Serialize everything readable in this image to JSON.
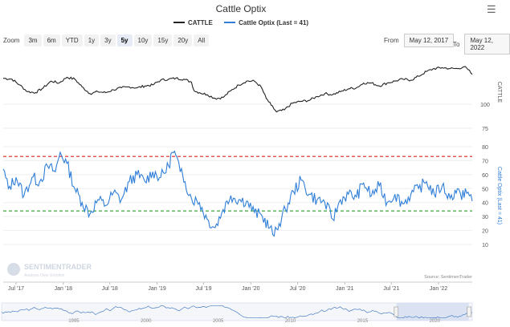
{
  "header": {
    "title": "Cattle Optix",
    "menu_icon": "hamburger-menu-icon"
  },
  "legend": [
    {
      "label": "CATTLE",
      "color": "#222222"
    },
    {
      "label": "Cattle Optix (Last = 41)",
      "color": "#2f7ed8"
    }
  ],
  "zoom": {
    "label": "Zoom",
    "buttons": [
      "3m",
      "6m",
      "YTD",
      "1y",
      "3y",
      "5y",
      "10y",
      "15y",
      "20y",
      "All"
    ],
    "selected": "5y"
  },
  "range": {
    "from_label": "From",
    "from_value": "May 12, 2017",
    "to_label": "To",
    "to_value": "May 12, 2022"
  },
  "watermark": {
    "name": "SENTIMENTRADER",
    "tagline": "Analysis Over Emotion"
  },
  "source": "Source: SentimenTrader",
  "chart_data": {
    "type": "line",
    "x_tick_labels": [
      "Jul '17",
      "Jan '18",
      "Jul '18",
      "Jan '19",
      "Jul '19",
      "Jan '20",
      "Jul '20",
      "Jan '21",
      "Jul '21",
      "Jan '22"
    ],
    "series": [
      {
        "name": "CATTLE",
        "color": "#222222",
        "axis_label": "CATTLE",
        "ylim": [
          75,
          150
        ],
        "y_tick_labels": [
          "75",
          "100"
        ],
        "points": [
          [
            "2017-05-12",
            127
          ],
          [
            "2017-06-15",
            126
          ],
          [
            "2017-07-15",
            120
          ],
          [
            "2017-08-15",
            113
          ],
          [
            "2017-09-15",
            112
          ],
          [
            "2017-10-15",
            117
          ],
          [
            "2017-11-15",
            124
          ],
          [
            "2017-12-15",
            122
          ],
          [
            "2018-01-15",
            128
          ],
          [
            "2018-02-15",
            126
          ],
          [
            "2018-03-15",
            118
          ],
          [
            "2018-04-15",
            111
          ],
          [
            "2018-05-15",
            113
          ],
          [
            "2018-06-15",
            112
          ],
          [
            "2018-07-15",
            115
          ],
          [
            "2018-08-15",
            117
          ],
          [
            "2018-09-15",
            118
          ],
          [
            "2018-10-15",
            117
          ],
          [
            "2018-11-15",
            119
          ],
          [
            "2018-12-15",
            120
          ],
          [
            "2019-01-15",
            125
          ],
          [
            "2019-02-15",
            126
          ],
          [
            "2019-03-15",
            127
          ],
          [
            "2019-04-15",
            126
          ],
          [
            "2019-05-15",
            123
          ],
          [
            "2019-05-25",
            114
          ],
          [
            "2019-06-15",
            112
          ],
          [
            "2019-07-15",
            110
          ],
          [
            "2019-08-15",
            106
          ],
          [
            "2019-09-15",
            107
          ],
          [
            "2019-10-15",
            114
          ],
          [
            "2019-11-15",
            120
          ],
          [
            "2019-12-15",
            124
          ],
          [
            "2020-01-15",
            124
          ],
          [
            "2020-02-10",
            118
          ],
          [
            "2020-03-01",
            106
          ],
          [
            "2020-03-20",
            99
          ],
          [
            "2020-04-10",
            92
          ],
          [
            "2020-05-10",
            94
          ],
          [
            "2020-06-10",
            101
          ],
          [
            "2020-07-15",
            103
          ],
          [
            "2020-08-15",
            104
          ],
          [
            "2020-09-15",
            108
          ],
          [
            "2020-10-15",
            111
          ],
          [
            "2020-11-15",
            110
          ],
          [
            "2020-12-15",
            113
          ],
          [
            "2021-01-15",
            116
          ],
          [
            "2021-02-15",
            117
          ],
          [
            "2021-03-15",
            122
          ],
          [
            "2021-04-15",
            122
          ],
          [
            "2021-05-15",
            119
          ],
          [
            "2021-06-15",
            122
          ],
          [
            "2021-07-15",
            124
          ],
          [
            "2021-08-15",
            126
          ],
          [
            "2021-09-15",
            125
          ],
          [
            "2021-10-15",
            129
          ],
          [
            "2021-11-15",
            134
          ],
          [
            "2021-12-15",
            137
          ],
          [
            "2022-01-15",
            138
          ],
          [
            "2022-02-15",
            137
          ],
          [
            "2022-03-15",
            137
          ],
          [
            "2022-04-10",
            139
          ],
          [
            "2022-04-25",
            136
          ],
          [
            "2022-05-12",
            131
          ]
        ]
      },
      {
        "name": "Cattle Optix (Last = 41)",
        "color": "#2f7ed8",
        "axis_label": "Cattle Optix (Last = 41)",
        "ylim": [
          10,
          80
        ],
        "y_tick_labels": [
          "10",
          "20",
          "30",
          "40",
          "50",
          "60",
          "70",
          "80"
        ],
        "points": [
          [
            "2017-05-12",
            64
          ],
          [
            "2017-06-01",
            50
          ],
          [
            "2017-07-01",
            58
          ],
          [
            "2017-08-01",
            45
          ],
          [
            "2017-09-01",
            58
          ],
          [
            "2017-10-01",
            55
          ],
          [
            "2017-11-01",
            66
          ],
          [
            "2017-12-01",
            62
          ],
          [
            "2017-12-20",
            76
          ],
          [
            "2018-01-15",
            68
          ],
          [
            "2018-02-15",
            50
          ],
          [
            "2018-03-15",
            40
          ],
          [
            "2018-04-15",
            32
          ],
          [
            "2018-05-15",
            42
          ],
          [
            "2018-06-15",
            38
          ],
          [
            "2018-07-15",
            47
          ],
          [
            "2018-08-15",
            42
          ],
          [
            "2018-09-15",
            55
          ],
          [
            "2018-10-15",
            60
          ],
          [
            "2018-11-15",
            55
          ],
          [
            "2018-12-15",
            62
          ],
          [
            "2019-01-15",
            58
          ],
          [
            "2019-02-15",
            66
          ],
          [
            "2019-02-28",
            76
          ],
          [
            "2019-03-15",
            74
          ],
          [
            "2019-04-01",
            62
          ],
          [
            "2019-04-20",
            55
          ],
          [
            "2019-05-15",
            43
          ],
          [
            "2019-06-15",
            40
          ],
          [
            "2019-07-15",
            28
          ],
          [
            "2019-08-15",
            22
          ],
          [
            "2019-09-15",
            35
          ],
          [
            "2019-10-15",
            45
          ],
          [
            "2019-11-15",
            42
          ],
          [
            "2019-12-15",
            41
          ],
          [
            "2020-01-15",
            33
          ],
          [
            "2020-02-15",
            30
          ],
          [
            "2020-03-15",
            22
          ],
          [
            "2020-04-01",
            16
          ],
          [
            "2020-04-20",
            25
          ],
          [
            "2020-05-15",
            35
          ],
          [
            "2020-06-15",
            48
          ],
          [
            "2020-07-15",
            56
          ],
          [
            "2020-08-15",
            46
          ],
          [
            "2020-09-15",
            42
          ],
          [
            "2020-10-15",
            40
          ],
          [
            "2020-11-15",
            28
          ],
          [
            "2020-12-15",
            42
          ],
          [
            "2021-01-15",
            46
          ],
          [
            "2021-02-15",
            44
          ],
          [
            "2021-03-15",
            54
          ],
          [
            "2021-04-15",
            45
          ],
          [
            "2021-05-15",
            52
          ],
          [
            "2021-06-15",
            40
          ],
          [
            "2021-07-15",
            46
          ],
          [
            "2021-08-15",
            39
          ],
          [
            "2021-09-15",
            46
          ],
          [
            "2021-10-15",
            50
          ],
          [
            "2021-11-15",
            55
          ],
          [
            "2021-12-15",
            46
          ],
          [
            "2022-01-15",
            52
          ],
          [
            "2022-02-15",
            43
          ],
          [
            "2022-03-15",
            50
          ],
          [
            "2022-04-01",
            42
          ],
          [
            "2022-04-15",
            50
          ],
          [
            "2022-05-12",
            41
          ]
        ],
        "reference_lines": [
          {
            "value": 73,
            "color": "#e0231b",
            "style": "dashed"
          },
          {
            "value": 34,
            "color": "#2a9a2a",
            "style": "dashed"
          }
        ]
      }
    ],
    "navigator": {
      "tick_labels": [
        "1995",
        "2000",
        "2005",
        "2010",
        "2015",
        "2020"
      ]
    },
    "grid": true
  }
}
